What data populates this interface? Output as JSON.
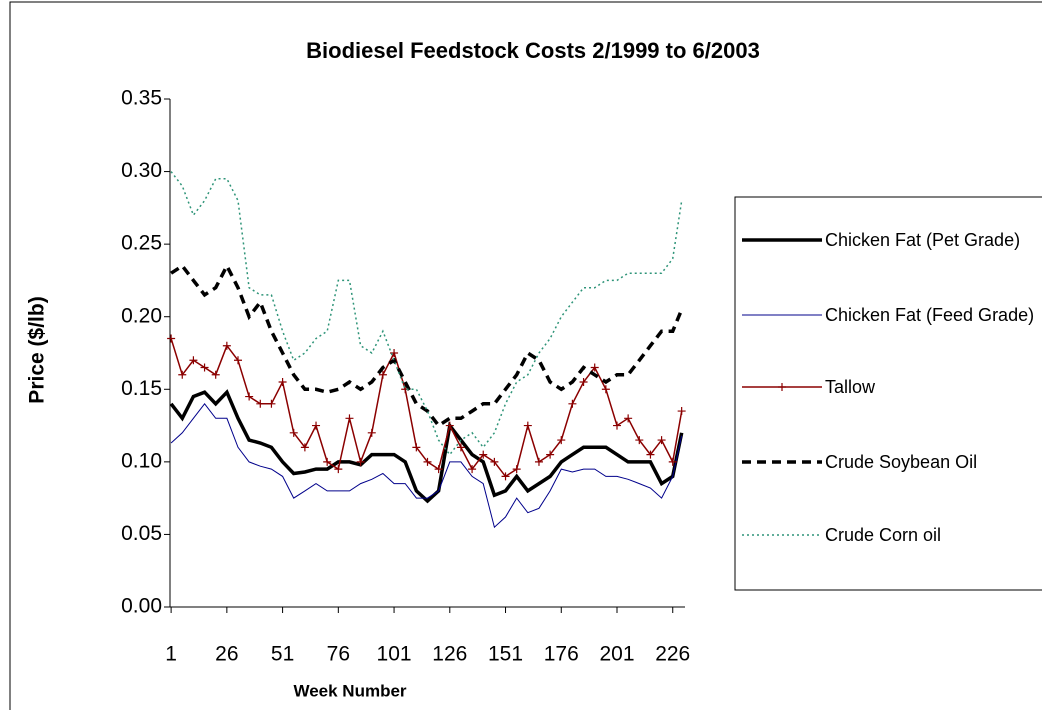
{
  "chart_data": {
    "type": "line",
    "title": "Biodiesel Feedstock Costs 2/1999 to 6/2003",
    "x_label": "Week Number",
    "y_label": "Price ($/lb)",
    "x": [
      1,
      6,
      11,
      16,
      21,
      26,
      31,
      36,
      41,
      46,
      51,
      56,
      61,
      66,
      71,
      76,
      81,
      86,
      91,
      96,
      101,
      106,
      111,
      116,
      121,
      126,
      131,
      136,
      141,
      146,
      151,
      156,
      161,
      166,
      171,
      176,
      181,
      186,
      191,
      196,
      201,
      206,
      211,
      216,
      221,
      226,
      230
    ],
    "xlim": [
      0.5,
      231.5
    ],
    "xticks": [
      1,
      26,
      51,
      76,
      101,
      126,
      151,
      176,
      201,
      226
    ],
    "ylim": [
      0,
      0.35
    ],
    "yticks": [
      {
        "value": 0,
        "label": "0.00"
      },
      {
        "value": 0.05,
        "label": "0.05"
      },
      {
        "value": 0.1,
        "label": "0.10"
      },
      {
        "value": 0.15,
        "label": "0.15"
      },
      {
        "value": 0.2,
        "label": "0.20"
      },
      {
        "value": 0.25,
        "label": "0.25"
      },
      {
        "value": 0.3,
        "label": "0.30"
      },
      {
        "value": 0.35,
        "label": "0.35"
      }
    ],
    "grid": false,
    "legend": "right",
    "series": [
      {
        "name": "Chicken Fat (Pet Grade)",
        "color": "#000000",
        "line_style": "solid",
        "width": 3.5,
        "values": [
          0.14,
          0.13,
          0.145,
          0.148,
          0.14,
          0.148,
          0.13,
          0.115,
          0.113,
          0.11,
          0.1,
          0.092,
          0.093,
          0.095,
          0.095,
          0.1,
          0.1,
          0.098,
          0.105,
          0.105,
          0.105,
          0.1,
          0.08,
          0.073,
          0.08,
          0.125,
          0.115,
          0.105,
          0.1,
          0.077,
          0.08,
          0.09,
          0.08,
          0.085,
          0.09,
          0.1,
          0.105,
          0.11,
          0.11,
          0.11,
          0.105,
          0.1,
          0.1,
          0.1,
          0.085,
          0.09,
          0.12
        ]
      },
      {
        "name": "Chicken Fat (Feed Grade)",
        "color": "#00008b",
        "line_style": "solid",
        "width": 1,
        "values": [
          0.113,
          0.12,
          0.13,
          0.14,
          0.13,
          0.13,
          0.11,
          0.1,
          0.097,
          0.095,
          0.09,
          0.075,
          0.08,
          0.085,
          0.08,
          0.08,
          0.08,
          0.085,
          0.088,
          0.092,
          0.085,
          0.085,
          0.075,
          0.075,
          0.08,
          0.1,
          0.1,
          0.09,
          0.085,
          0.055,
          0.062,
          0.075,
          0.065,
          0.068,
          0.08,
          0.095,
          0.093,
          0.095,
          0.095,
          0.09,
          0.09,
          0.088,
          0.085,
          0.082,
          0.075,
          0.09,
          0.118
        ]
      },
      {
        "name": "Tallow",
        "color": "#8b0000",
        "line_style": "solid",
        "width": 1.5,
        "marker": "+",
        "values": [
          0.185,
          0.16,
          0.17,
          0.165,
          0.16,
          0.18,
          0.17,
          0.145,
          0.14,
          0.14,
          0.155,
          0.12,
          0.11,
          0.125,
          0.1,
          0.095,
          0.13,
          0.1,
          0.12,
          0.16,
          0.175,
          0.15,
          0.11,
          0.1,
          0.095,
          0.125,
          0.11,
          0.095,
          0.105,
          0.1,
          0.09,
          0.095,
          0.125,
          0.1,
          0.105,
          0.115,
          0.14,
          0.155,
          0.165,
          0.15,
          0.125,
          0.13,
          0.115,
          0.105,
          0.115,
          0.1,
          0.135
        ]
      },
      {
        "name": "Crude Soybean Oil",
        "color": "#000000",
        "line_style": "dashed",
        "width": 3.5,
        "values": [
          0.23,
          0.235,
          0.225,
          0.215,
          0.22,
          0.235,
          0.22,
          0.2,
          0.21,
          0.19,
          0.175,
          0.16,
          0.15,
          0.15,
          0.148,
          0.15,
          0.155,
          0.15,
          0.155,
          0.165,
          0.17,
          0.155,
          0.14,
          0.135,
          0.125,
          0.13,
          0.13,
          0.135,
          0.14,
          0.14,
          0.15,
          0.16,
          0.175,
          0.17,
          0.155,
          0.15,
          0.155,
          0.165,
          0.16,
          0.155,
          0.16,
          0.16,
          0.17,
          0.18,
          0.19,
          0.19,
          0.205
        ]
      },
      {
        "name": "Crude Corn oil",
        "color": "#2e9478",
        "line_style": "dotted",
        "width": 1.5,
        "values": [
          0.3,
          0.29,
          0.27,
          0.28,
          0.295,
          0.295,
          0.28,
          0.22,
          0.215,
          0.215,
          0.19,
          0.17,
          0.175,
          0.185,
          0.19,
          0.225,
          0.225,
          0.18,
          0.175,
          0.19,
          0.17,
          0.15,
          0.15,
          0.135,
          0.115,
          0.105,
          0.115,
          0.12,
          0.11,
          0.12,
          0.14,
          0.155,
          0.16,
          0.175,
          0.185,
          0.2,
          0.21,
          0.22,
          0.22,
          0.225,
          0.225,
          0.23,
          0.23,
          0.23,
          0.23,
          0.24,
          0.28
        ]
      }
    ]
  }
}
